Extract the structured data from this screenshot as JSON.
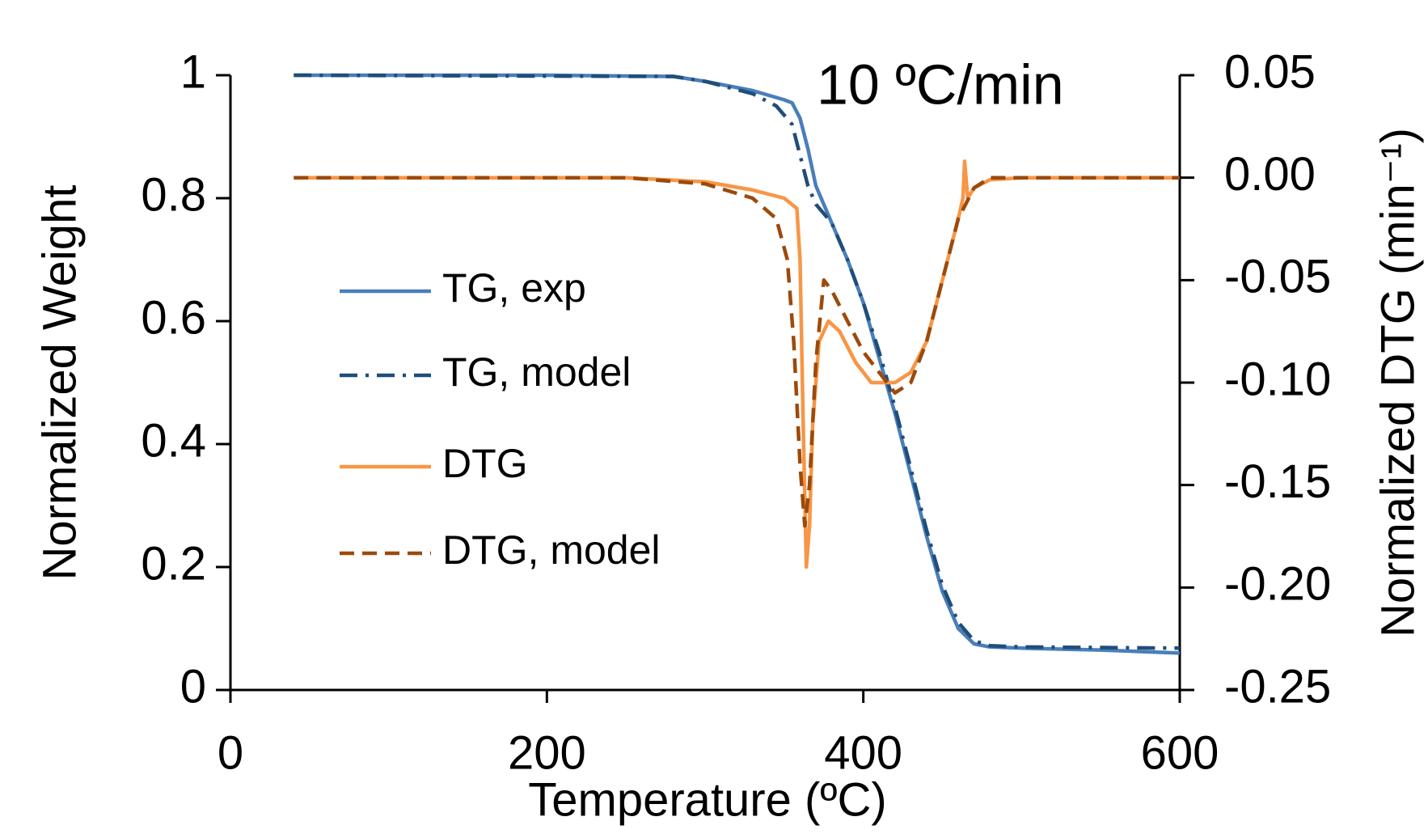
{
  "chart_data": {
    "type": "line",
    "annotation": "10 ºC/min",
    "xlabel": "Temperature (ºC)",
    "ylabel": "Normalized Weight",
    "y2label": "Normalized DTG (min⁻¹)",
    "xlim": [
      0,
      600
    ],
    "xticks": [
      0,
      200,
      400,
      600
    ],
    "ylim": [
      0,
      1
    ],
    "yticks": [
      0,
      0.2,
      0.4,
      0.6,
      0.8,
      1
    ],
    "y2lim": [
      -0.25,
      0.05
    ],
    "y2ticks": [
      -0.25,
      {
        "value": -0.2,
        "label": "-0.20"
      },
      -0.15,
      {
        "value": -0.1,
        "label": "-0.10"
      },
      -0.05,
      {
        "value": 0,
        "label": "0.00"
      },
      0.05
    ],
    "grid": false,
    "legend": "left",
    "series": [
      {
        "name": "TG, exp",
        "color": "#4a7ebb",
        "line_style": "solid",
        "x": [
          40,
          200,
          280,
          300,
          330,
          350,
          355,
          360,
          365,
          370,
          380,
          390,
          400,
          410,
          420,
          430,
          440,
          450,
          460,
          470,
          480,
          500,
          550,
          600
        ],
        "values": [
          1,
          1,
          0.998,
          0.99,
          0.975,
          0.96,
          0.955,
          0.93,
          0.88,
          0.82,
          0.76,
          0.7,
          0.63,
          0.54,
          0.45,
          0.35,
          0.25,
          0.16,
          0.1,
          0.075,
          0.07,
          0.068,
          0.065,
          0.06
        ]
      },
      {
        "name": "TG, model",
        "color": "#1f4e79",
        "line_style": "dashdot",
        "x": [
          40,
          280,
          300,
          330,
          345,
          355,
          360,
          365,
          370,
          380,
          390,
          400,
          410,
          420,
          430,
          440,
          450,
          460,
          470,
          480,
          500,
          600
        ],
        "values": [
          1,
          0.998,
          0.99,
          0.97,
          0.95,
          0.92,
          0.87,
          0.82,
          0.79,
          0.76,
          0.7,
          0.63,
          0.55,
          0.46,
          0.36,
          0.26,
          0.17,
          0.11,
          0.08,
          0.072,
          0.07,
          0.068
        ]
      },
      {
        "name": "DTG",
        "color": "#f79646",
        "line_style": "solid",
        "axis": "y2",
        "x": [
          40,
          250,
          300,
          330,
          350,
          358,
          360,
          362,
          364,
          366,
          368,
          372,
          378,
          385,
          395,
          405,
          420,
          430,
          440,
          450,
          460,
          463,
          464,
          466,
          470,
          480,
          500,
          600
        ],
        "values": [
          0,
          0,
          -0.002,
          -0.006,
          -0.01,
          -0.015,
          -0.04,
          -0.12,
          -0.19,
          -0.17,
          -0.12,
          -0.08,
          -0.07,
          -0.075,
          -0.09,
          -0.1,
          -0.1,
          -0.095,
          -0.08,
          -0.05,
          -0.02,
          -0.01,
          0.008,
          -0.01,
          -0.005,
          -0.001,
          0,
          0
        ]
      },
      {
        "name": "DTG, model",
        "color": "#9c4a0c",
        "line_style": "dashed",
        "axis": "y2",
        "x": [
          40,
          250,
          300,
          330,
          345,
          352,
          356,
          360,
          363,
          366,
          370,
          375,
          380,
          390,
          400,
          410,
          420,
          430,
          440,
          450,
          460,
          470,
          480,
          600
        ],
        "values": [
          0,
          0,
          -0.003,
          -0.01,
          -0.02,
          -0.04,
          -0.08,
          -0.14,
          -0.17,
          -0.15,
          -0.09,
          -0.05,
          -0.055,
          -0.07,
          -0.085,
          -0.095,
          -0.105,
          -0.1,
          -0.08,
          -0.05,
          -0.02,
          -0.005,
          0,
          0
        ]
      }
    ]
  }
}
